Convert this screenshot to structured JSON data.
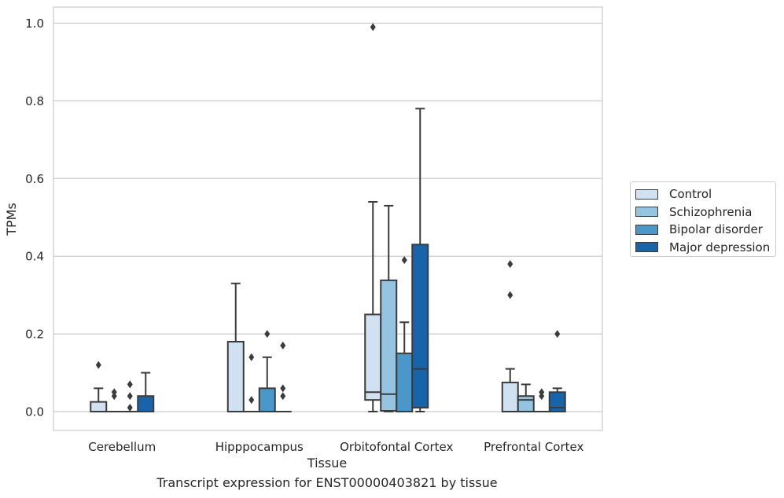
{
  "caption": "Transcript expression for ENST00000403821 by tissue",
  "chart_data": {
    "type": "boxplot",
    "xlabel": "Tissue",
    "ylabel": "TPMs",
    "ylim": [
      -0.048,
      1.04
    ],
    "yticks": [
      0.0,
      0.2,
      0.4,
      0.6,
      0.8,
      1.0
    ],
    "ytick_labels": [
      "0.0",
      "0.2",
      "0.4",
      "0.6",
      "0.8",
      "1.0"
    ],
    "grid": "horizontal",
    "legend_position": "right",
    "categories": [
      "Cerebellum",
      "Hipppocampus",
      "Orbitofontal Cortex",
      "Prefrontal Cortex"
    ],
    "series": [
      {
        "name": "Control",
        "color": "#d0e1f2",
        "boxes": [
          {
            "q1": 0,
            "median": 0,
            "q3": 0.025,
            "whisker_low": 0,
            "whisker_high": 0.06,
            "outliers": [
              0.12
            ]
          },
          {
            "q1": 0,
            "median": 0,
            "q3": 0.18,
            "whisker_low": 0,
            "whisker_high": 0.33,
            "outliers": []
          },
          {
            "q1": 0.03,
            "median": 0.05,
            "q3": 0.25,
            "whisker_low": 0,
            "whisker_high": 0.54,
            "outliers": [
              0.99
            ]
          },
          {
            "q1": 0,
            "median": 0,
            "q3": 0.075,
            "whisker_low": 0,
            "whisker_high": 0.11,
            "outliers": [
              0.3,
              0.38
            ]
          }
        ]
      },
      {
        "name": "Schizophrenia",
        "color": "#94c4df",
        "boxes": [
          {
            "q1": 0,
            "median": 0,
            "q3": 0,
            "whisker_low": 0,
            "whisker_high": 0,
            "outliers": [
              0.04,
              0.05
            ]
          },
          {
            "q1": 0,
            "median": 0,
            "q3": 0,
            "whisker_low": 0,
            "whisker_high": 0,
            "outliers": [
              0.03,
              0.14
            ]
          },
          {
            "q1": 0.002,
            "median": 0.045,
            "q3": 0.338,
            "whisker_low": 0,
            "whisker_high": 0.53,
            "outliers": []
          },
          {
            "q1": 0,
            "median": 0.03,
            "q3": 0.04,
            "whisker_low": 0,
            "whisker_high": 0.07,
            "outliers": []
          }
        ]
      },
      {
        "name": "Bipolar disorder",
        "color": "#4a98c9",
        "boxes": [
          {
            "q1": 0,
            "median": 0,
            "q3": 0,
            "whisker_low": 0,
            "whisker_high": 0,
            "outliers": [
              0.01,
              0.04,
              0.07
            ]
          },
          {
            "q1": 0,
            "median": 0,
            "q3": 0.06,
            "whisker_low": 0,
            "whisker_high": 0.14,
            "outliers": [
              0.2
            ]
          },
          {
            "q1": 0,
            "median": 0,
            "q3": 0.15,
            "whisker_low": 0,
            "whisker_high": 0.23,
            "outliers": [
              0.39
            ]
          },
          {
            "q1": 0,
            "median": 0,
            "q3": 0,
            "whisker_low": 0,
            "whisker_high": 0,
            "outliers": [
              0.04,
              0.05
            ]
          }
        ]
      },
      {
        "name": "Major depression",
        "color": "#1764ab",
        "boxes": [
          {
            "q1": 0,
            "median": 0,
            "q3": 0.04,
            "whisker_low": 0,
            "whisker_high": 0.1,
            "outliers": []
          },
          {
            "q1": 0,
            "median": 0,
            "q3": 0,
            "whisker_low": 0,
            "whisker_high": 0,
            "outliers": [
              0.04,
              0.06,
              0.17
            ]
          },
          {
            "q1": 0.01,
            "median": 0.11,
            "q3": 0.43,
            "whisker_low": 0,
            "whisker_high": 0.78,
            "outliers": []
          },
          {
            "q1": 0,
            "median": 0.01,
            "q3": 0.05,
            "whisker_low": 0,
            "whisker_high": 0.06,
            "outliers": [
              0.2
            ]
          }
        ]
      }
    ]
  }
}
